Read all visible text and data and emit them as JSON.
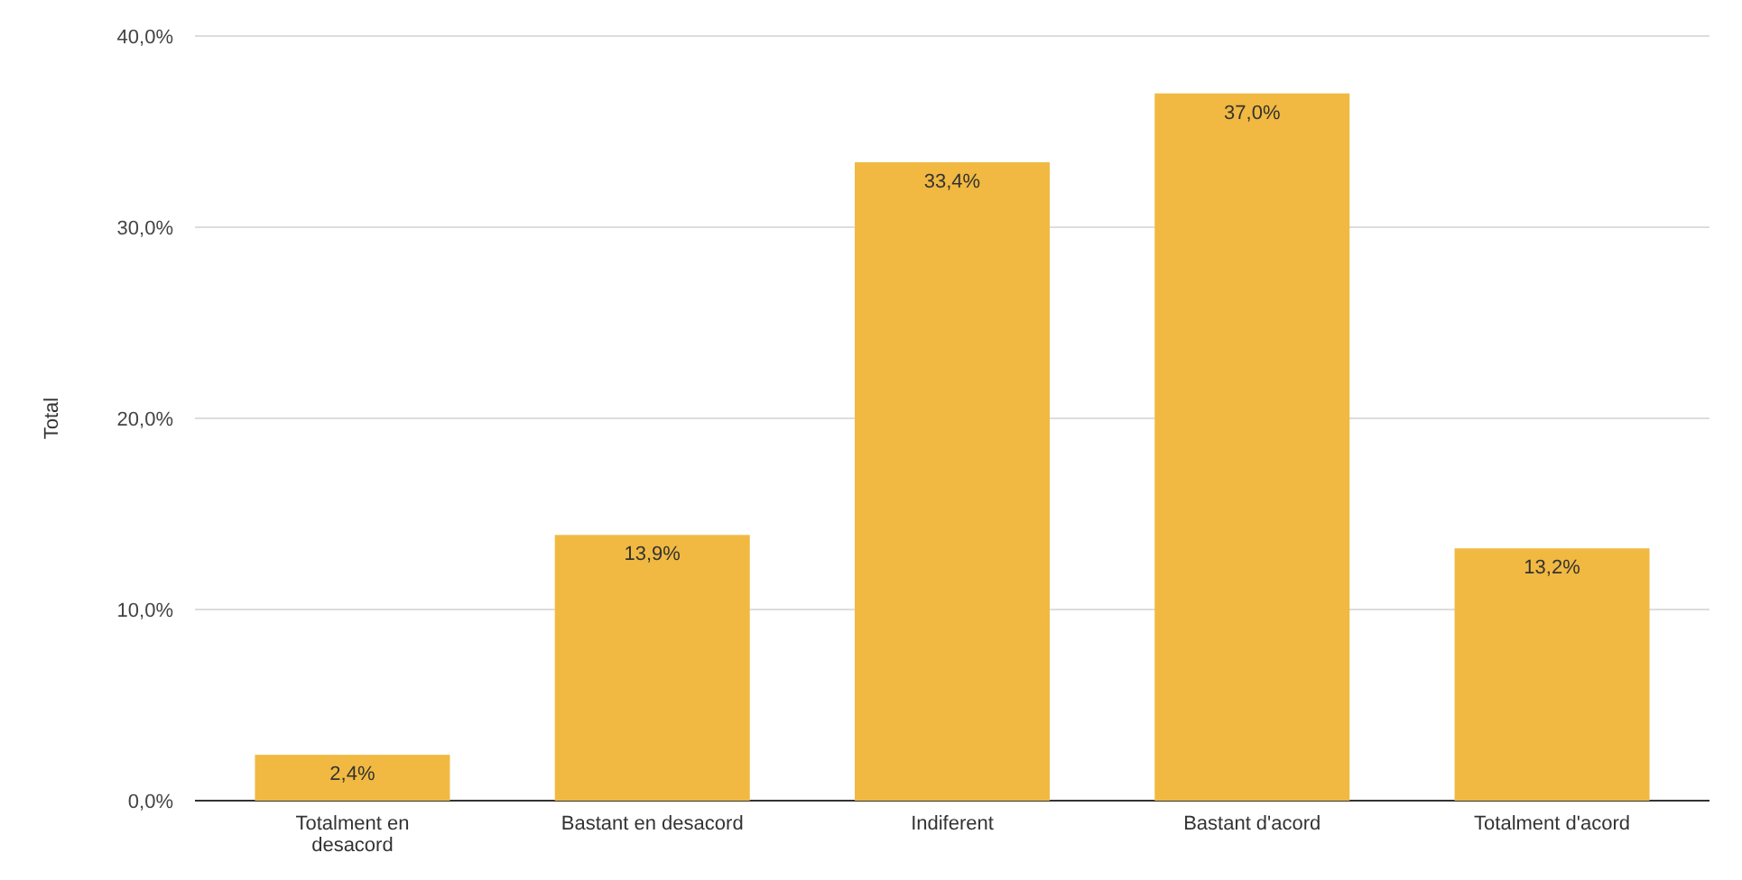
{
  "chart_data": {
    "type": "bar",
    "ylabel": "Total",
    "categories": [
      "Totalment en desacord",
      "Bastant en desacord",
      "Indiferent",
      "Bastant d'acord",
      "Totalment d'acord"
    ],
    "values": [
      2.4,
      13.9,
      33.4,
      37.0,
      13.2
    ],
    "value_labels": [
      "2,4%",
      "13,9%",
      "33,4%",
      "37,0%",
      "13,2%"
    ],
    "color": "#f1b941",
    "ylim": [
      0,
      40
    ],
    "yticks": [
      {
        "value": 0,
        "label": "0,0%"
      },
      {
        "value": 10,
        "label": "10,0%"
      },
      {
        "value": 20,
        "label": "20,0%"
      },
      {
        "value": 30,
        "label": "30,0%"
      },
      {
        "value": 40,
        "label": "40,0%"
      }
    ],
    "grid": "y"
  }
}
